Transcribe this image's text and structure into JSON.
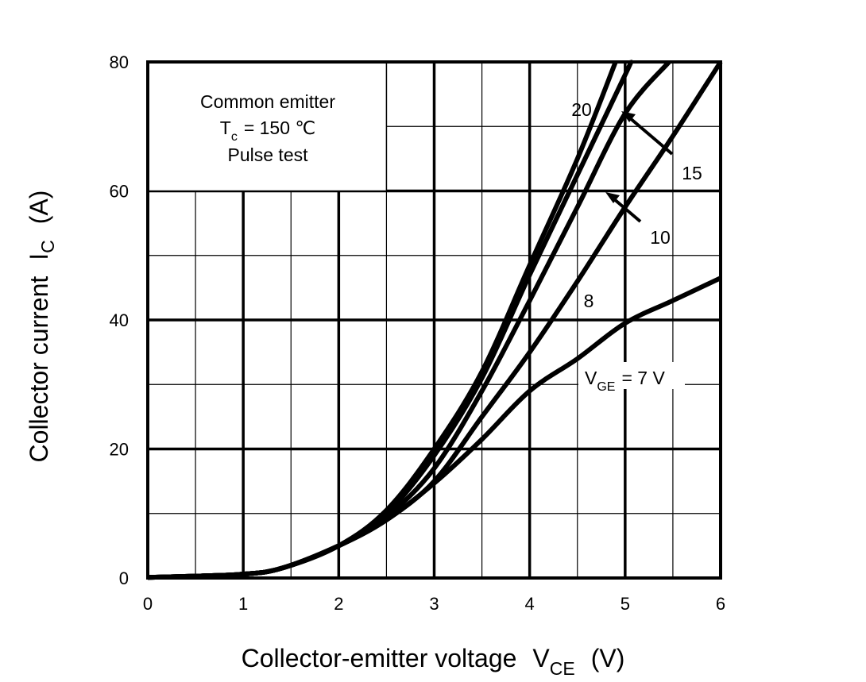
{
  "chart_data": {
    "type": "line",
    "title": "",
    "xlabel": {
      "main": "Collector-emitter voltage",
      "symbol": "V",
      "sub": "CE",
      "unit": "(V)"
    },
    "ylabel": {
      "main": "Collector current",
      "symbol": "I",
      "sub": "C",
      "unit": "(A)"
    },
    "xlim": [
      0,
      6
    ],
    "ylim": [
      0,
      80
    ],
    "xticks": [
      0,
      1,
      2,
      3,
      4,
      5,
      6
    ],
    "yticks": [
      0,
      20,
      40,
      60,
      80
    ],
    "x_tick_labels": [
      "0",
      "1",
      "2",
      "3",
      "4",
      "5",
      "6"
    ],
    "y_tick_labels": [
      "0",
      "20",
      "40",
      "60",
      "80"
    ],
    "grid": true,
    "annotation": {
      "line1": "Common emitter",
      "line2_symbol": "T",
      "line2_sub": "c",
      "line2_rest": "= 150 ℃",
      "line3": "Pulse test"
    },
    "series": [
      {
        "name": "VGE = 7 V",
        "label_prefix": "V",
        "label_sub": "GE",
        "label_rest": "= 7 V",
        "points": [
          [
            0,
            0.1
          ],
          [
            0.5,
            0.3
          ],
          [
            1,
            0.6
          ],
          [
            1.4,
            1.5
          ],
          [
            2,
            5
          ],
          [
            2.5,
            9
          ],
          [
            3,
            14.7
          ],
          [
            3.5,
            21.5
          ],
          [
            4,
            29
          ],
          [
            4.5,
            34
          ],
          [
            5,
            39.5
          ],
          [
            5.5,
            43
          ],
          [
            6,
            46.5
          ]
        ]
      },
      {
        "name": "8",
        "label": "8",
        "points": [
          [
            0,
            0.1
          ],
          [
            0.5,
            0.3
          ],
          [
            1,
            0.6
          ],
          [
            1.4,
            1.5
          ],
          [
            2,
            5
          ],
          [
            2.5,
            9
          ],
          [
            3,
            15
          ],
          [
            3.5,
            25
          ],
          [
            4,
            35
          ],
          [
            4.5,
            46
          ],
          [
            5,
            57.5
          ],
          [
            5.5,
            68.5
          ],
          [
            6,
            80
          ]
        ]
      },
      {
        "name": "10",
        "label": "10",
        "points": [
          [
            0,
            0.1
          ],
          [
            0.5,
            0.3
          ],
          [
            1,
            0.6
          ],
          [
            1.4,
            1.5
          ],
          [
            2,
            5
          ],
          [
            2.5,
            9.5
          ],
          [
            3,
            17
          ],
          [
            3.5,
            29
          ],
          [
            4,
            43
          ],
          [
            4.5,
            57.5
          ],
          [
            5,
            72
          ],
          [
            5.46,
            80
          ]
        ]
      },
      {
        "name": "15",
        "label": "15",
        "points": [
          [
            0,
            0.1
          ],
          [
            0.5,
            0.3
          ],
          [
            1,
            0.6
          ],
          [
            1.4,
            1.5
          ],
          [
            2,
            5
          ],
          [
            2.5,
            10
          ],
          [
            3,
            19
          ],
          [
            3.5,
            31
          ],
          [
            4,
            47
          ],
          [
            4.5,
            62.5
          ],
          [
            5,
            78
          ],
          [
            5.06,
            80
          ]
        ]
      },
      {
        "name": "20",
        "label": "20",
        "points": [
          [
            0,
            0.1
          ],
          [
            0.5,
            0.3
          ],
          [
            1,
            0.6
          ],
          [
            1.4,
            1.5
          ],
          [
            2,
            5
          ],
          [
            2.5,
            10.5
          ],
          [
            3,
            20
          ],
          [
            3.5,
            32
          ],
          [
            4,
            48.5
          ],
          [
            4.5,
            65
          ],
          [
            4.9,
            80
          ]
        ]
      }
    ]
  }
}
